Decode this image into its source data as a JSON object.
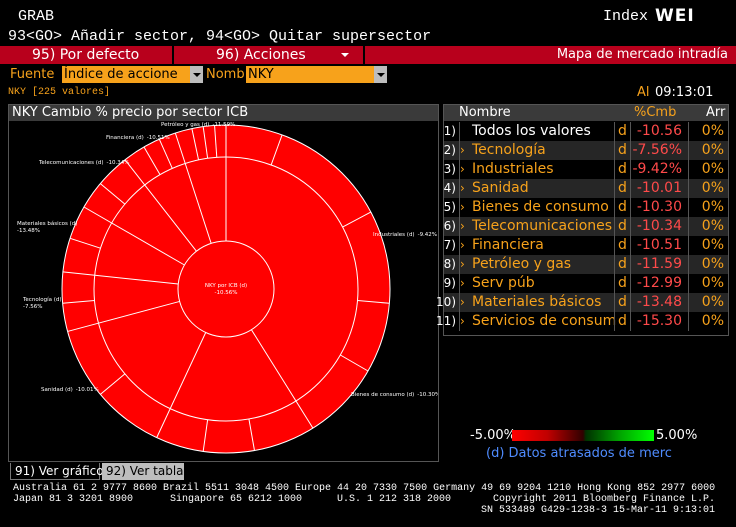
{
  "header": {
    "command": "GRAB",
    "index_label": "Index",
    "index_code": "WEI",
    "help": "93<GO> Añadir sector, 94<GO> Quitar supersector"
  },
  "toolbar": {
    "default": "95) Por defecto",
    "actions": "96) Acciones",
    "title": "Mapa de mercado intradía"
  },
  "filters": {
    "source_label": "Fuente",
    "source": "Índice de accione",
    "name_label": "Nomb",
    "name": "NKY"
  },
  "info": {
    "count": "NKY [225 valores]",
    "as_of_label": "Al",
    "time": "09:13:01"
  },
  "chart_panel": {
    "title": "NKY Cambio % precio por sector ICB",
    "center_label": {
      "name": "NKY por ICB (d)",
      "value": "-10.56%"
    },
    "sector_labels": [
      {
        "name": "Petróleo y gas (d)",
        "value": "-11.59%"
      },
      {
        "name": "Financiera (d)",
        "value": "-10.51%"
      },
      {
        "name": "Telecomunicaciones (d)",
        "value": "-10.34%"
      },
      {
        "name": "Materiales básicos (d)",
        "value": "-13.48%"
      },
      {
        "name": "Tecnología (d)",
        "value": "-7.56%"
      },
      {
        "name": "Sanidad (d)",
        "value": "-10.01%"
      },
      {
        "name": "Bienes de consumo (d)",
        "value": "-10.30%"
      },
      {
        "name": "Industriales (d)",
        "value": "-9.42%"
      }
    ]
  },
  "table": {
    "columns": [
      "Nombre",
      "%Cmb",
      "Arr"
    ],
    "rows": [
      [
        "1)",
        "Todos los valores",
        "d",
        "-10.56",
        "0%"
      ],
      [
        "2)",
        "Tecnología",
        "d",
        "-7.56%",
        "0%"
      ],
      [
        "3)",
        "Industriales",
        "d",
        "-9.42%",
        "0%"
      ],
      [
        "4)",
        "Sanidad",
        "d",
        "-10.01",
        "0%"
      ],
      [
        "5)",
        "Bienes de consumo",
        "d",
        "-10.30",
        "0%"
      ],
      [
        "6)",
        "Telecomunicaciones",
        "d",
        "-10.34",
        "0%"
      ],
      [
        "7)",
        "Financiera",
        "d",
        "-10.51",
        "0%"
      ],
      [
        "8)",
        "Petróleo y gas",
        "d",
        "-11.59",
        "0%"
      ],
      [
        "9)",
        "Serv púb",
        "d",
        "-12.99",
        "0%"
      ],
      [
        "10)",
        "Materiales básicos",
        "d",
        "-13.48",
        "0%"
      ],
      [
        "11)",
        "Servicios de consum",
        "d",
        "-15.30",
        "0%"
      ]
    ]
  },
  "legend": {
    "min": "-5.00%",
    "max": "5.00%",
    "note": "(d) Datos atrasados de merc"
  },
  "tabs": [
    "91) Ver gráfico",
    "92) Ver tabla"
  ],
  "footer": {
    "line1": "Australia 61 2 9777 8600 Brazil 5511 3048 4500 Europe 44 20 7330 7500 Germany 49 69 9204 1210 Hong Kong 852 2977 6000",
    "line2": [
      "Japan 81 3 3201 8900",
      "Singapore 65 6212 1000",
      "U.S. 1 212 318 2000",
      "Copyright 2011 Bloomberg Finance L.P."
    ],
    "line3": "SN 533489 G429-1238-3 15-Mar-11  9:13:01"
  }
}
